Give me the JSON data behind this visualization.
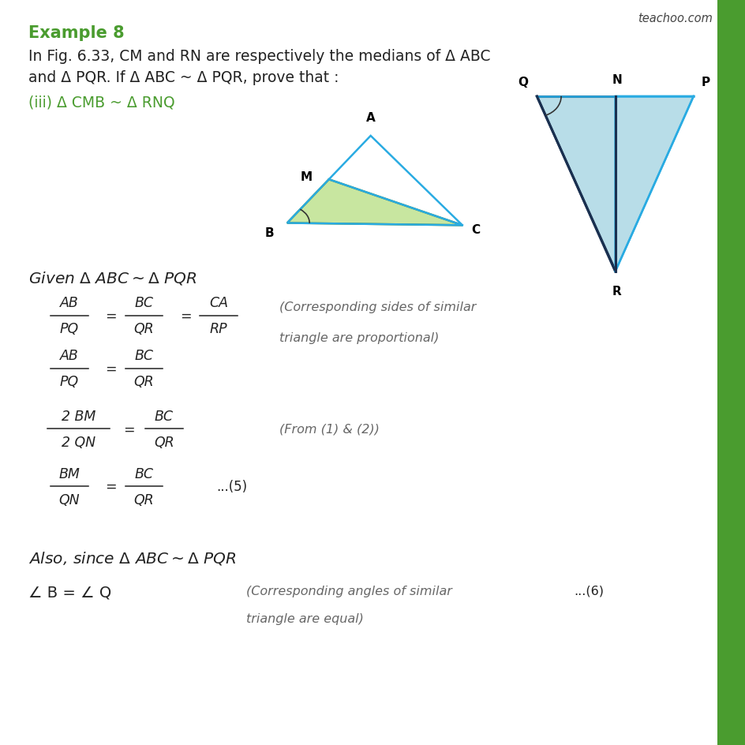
{
  "bg_color": "#ffffff",
  "page_width": 9.45,
  "page_height": 9.45,
  "title": "Example 8",
  "title_color": "#4a9c2f",
  "watermark": "teachoo.com",
  "watermark_color": "#444444",
  "body_text_color": "#222222",
  "green_text_color": "#4a9c2f",
  "gray_text_color": "#666666",
  "right_bar_color": "#4a9c2f",
  "tri_ABC": {
    "A": [
      0.497,
      0.817
    ],
    "B": [
      0.385,
      0.7
    ],
    "C": [
      0.62,
      0.697
    ],
    "outline_color": "#29abe2",
    "fill_color": "#c8e6a0",
    "green_edge": "#5a8a20"
  },
  "tri_PQR": {
    "Q": [
      0.72,
      0.87
    ],
    "P": [
      0.93,
      0.87
    ],
    "R": [
      0.825,
      0.635
    ],
    "outline_color": "#29abe2",
    "fill_color": "#b8dde8",
    "dark_color": "#1a3050"
  }
}
